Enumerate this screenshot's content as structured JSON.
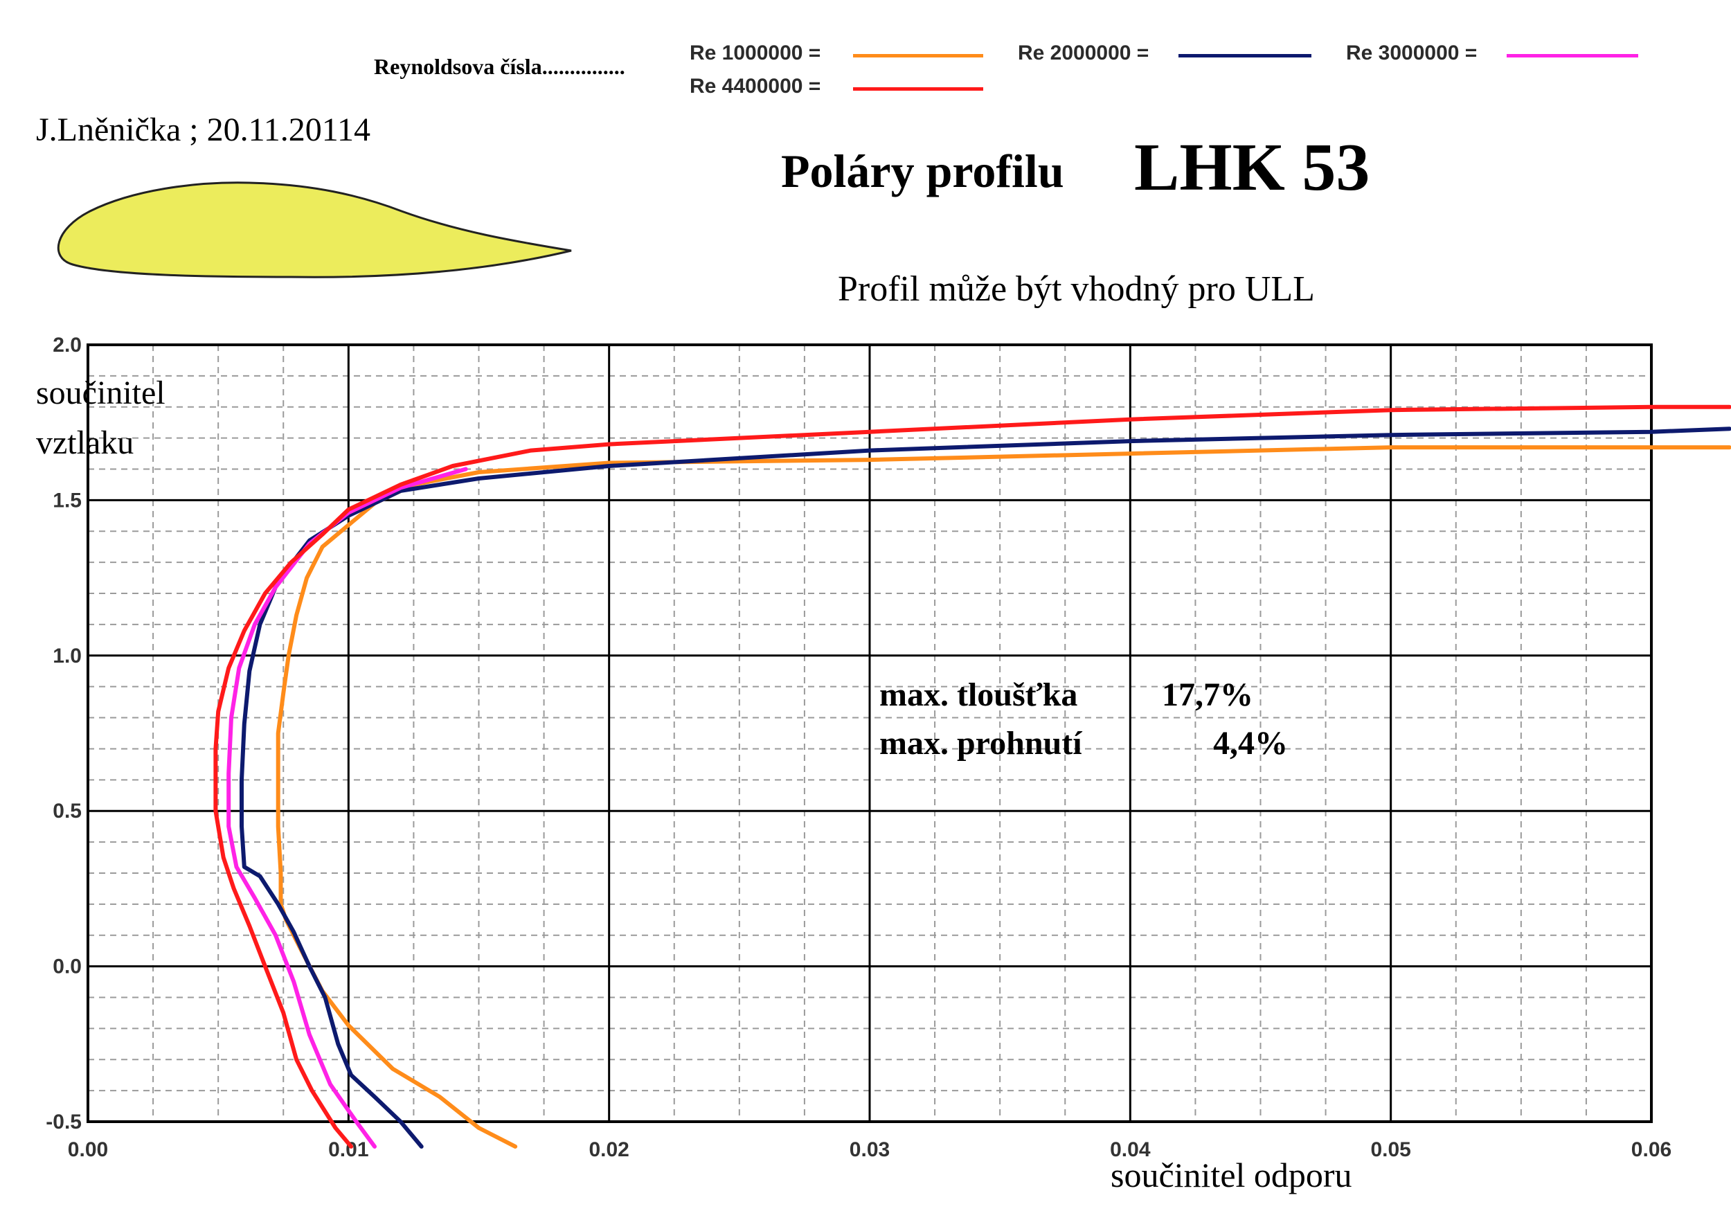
{
  "author_line": "J.Lněnička ; 20.11.20114",
  "title_prefix": "Poláry profilu",
  "title_main": "LHK 53",
  "subtitle": "Profil může být vhodný pro ULL",
  "annotations": {
    "thickness_label": "max. tloušťka",
    "thickness_value": "17,7%",
    "camber_label": "max. prohnutí",
    "camber_value": "4,4%"
  },
  "legend": {
    "heading": "Reynoldsova čísla...............",
    "entries": [
      {
        "label": "Re 1000000 =",
        "color": "#ff8c1a"
      },
      {
        "label": "Re 2000000 =",
        "color": "#0d1a6e"
      },
      {
        "label": "Re 3000000 =",
        "color": "#ff22e6"
      },
      {
        "label": "Re 4400000 =",
        "color": "#ff1a1a"
      }
    ]
  },
  "airfoil": {
    "fill": "#ecec5c",
    "stroke": "#222222"
  },
  "chart_data": {
    "type": "line",
    "title": "Poláry profilu LHK 53",
    "xlabel": "součinitel  odporu",
    "ylabel": "součinitel vztlaku",
    "xlim": [
      0.0,
      0.06
    ],
    "ylim": [
      -0.5,
      2.0
    ],
    "x_ticks": [
      "0.00",
      "0.01",
      "0.02",
      "0.03",
      "0.04",
      "0.05",
      "0.06"
    ],
    "y_ticks": [
      "2.0",
      "1.5",
      "1.0",
      "0.5",
      "0.0",
      "-0.5"
    ],
    "grid": true,
    "legend_position": "top",
    "series": [
      {
        "name": "Re 1000000",
        "color": "#ff8c1a",
        "points": [
          [
            0.0164,
            -0.58
          ],
          [
            0.015,
            -0.52
          ],
          [
            0.0135,
            -0.42
          ],
          [
            0.0117,
            -0.33
          ],
          [
            0.01,
            -0.19
          ],
          [
            0.009,
            -0.08
          ],
          [
            0.0082,
            0.05
          ],
          [
            0.0076,
            0.15
          ],
          [
            0.0074,
            0.2
          ],
          [
            0.0074,
            0.3
          ],
          [
            0.0073,
            0.45
          ],
          [
            0.0073,
            0.6
          ],
          [
            0.0073,
            0.75
          ],
          [
            0.0075,
            0.88
          ],
          [
            0.0077,
            1.0
          ],
          [
            0.008,
            1.13
          ],
          [
            0.0084,
            1.25
          ],
          [
            0.009,
            1.35
          ],
          [
            0.01,
            1.42
          ],
          [
            0.011,
            1.49
          ],
          [
            0.0125,
            1.55
          ],
          [
            0.015,
            1.59
          ],
          [
            0.02,
            1.62
          ],
          [
            0.03,
            1.63
          ],
          [
            0.04,
            1.65
          ],
          [
            0.05,
            1.67
          ],
          [
            0.06,
            1.67
          ],
          [
            0.063,
            1.67
          ]
        ]
      },
      {
        "name": "Re 2000000",
        "color": "#0d1a6e",
        "points": [
          [
            0.0128,
            -0.58
          ],
          [
            0.012,
            -0.5
          ],
          [
            0.011,
            -0.42
          ],
          [
            0.0101,
            -0.35
          ],
          [
            0.0096,
            -0.25
          ],
          [
            0.0091,
            -0.1
          ],
          [
            0.0085,
            0.0
          ],
          [
            0.0079,
            0.11
          ],
          [
            0.0073,
            0.2
          ],
          [
            0.0066,
            0.29
          ],
          [
            0.006,
            0.32
          ],
          [
            0.0059,
            0.45
          ],
          [
            0.0059,
            0.6
          ],
          [
            0.006,
            0.78
          ],
          [
            0.0062,
            0.95
          ],
          [
            0.0066,
            1.1
          ],
          [
            0.0073,
            1.24
          ],
          [
            0.0085,
            1.37
          ],
          [
            0.01,
            1.45
          ],
          [
            0.012,
            1.53
          ],
          [
            0.015,
            1.57
          ],
          [
            0.02,
            1.61
          ],
          [
            0.03,
            1.66
          ],
          [
            0.04,
            1.69
          ],
          [
            0.05,
            1.71
          ],
          [
            0.06,
            1.72
          ],
          [
            0.063,
            1.73
          ]
        ]
      },
      {
        "name": "Re 3000000",
        "color": "#ff22e6",
        "points": [
          [
            0.011,
            -0.58
          ],
          [
            0.0103,
            -0.5
          ],
          [
            0.0093,
            -0.38
          ],
          [
            0.0085,
            -0.22
          ],
          [
            0.0079,
            -0.05
          ],
          [
            0.0072,
            0.1
          ],
          [
            0.0064,
            0.22
          ],
          [
            0.0057,
            0.32
          ],
          [
            0.0054,
            0.45
          ],
          [
            0.0054,
            0.62
          ],
          [
            0.0055,
            0.8
          ],
          [
            0.0058,
            0.96
          ],
          [
            0.0064,
            1.1
          ],
          [
            0.0072,
            1.22
          ],
          [
            0.0085,
            1.36
          ],
          [
            0.01,
            1.46
          ],
          [
            0.012,
            1.54
          ],
          [
            0.0145,
            1.6
          ]
        ]
      },
      {
        "name": "Re 4400000",
        "color": "#ff1a1a",
        "points": [
          [
            0.0101,
            -0.58
          ],
          [
            0.0095,
            -0.52
          ],
          [
            0.0086,
            -0.4
          ],
          [
            0.008,
            -0.3
          ],
          [
            0.0075,
            -0.15
          ],
          [
            0.0068,
            0.0
          ],
          [
            0.0062,
            0.13
          ],
          [
            0.0056,
            0.25
          ],
          [
            0.0052,
            0.35
          ],
          [
            0.0049,
            0.5
          ],
          [
            0.0049,
            0.7
          ],
          [
            0.005,
            0.82
          ],
          [
            0.0054,
            0.96
          ],
          [
            0.006,
            1.08
          ],
          [
            0.0068,
            1.2
          ],
          [
            0.0078,
            1.3
          ],
          [
            0.009,
            1.39
          ],
          [
            0.01,
            1.47
          ],
          [
            0.012,
            1.55
          ],
          [
            0.014,
            1.61
          ],
          [
            0.017,
            1.66
          ],
          [
            0.02,
            1.68
          ],
          [
            0.03,
            1.72
          ],
          [
            0.04,
            1.76
          ],
          [
            0.05,
            1.79
          ],
          [
            0.06,
            1.8
          ],
          [
            0.063,
            1.8
          ]
        ]
      }
    ]
  }
}
